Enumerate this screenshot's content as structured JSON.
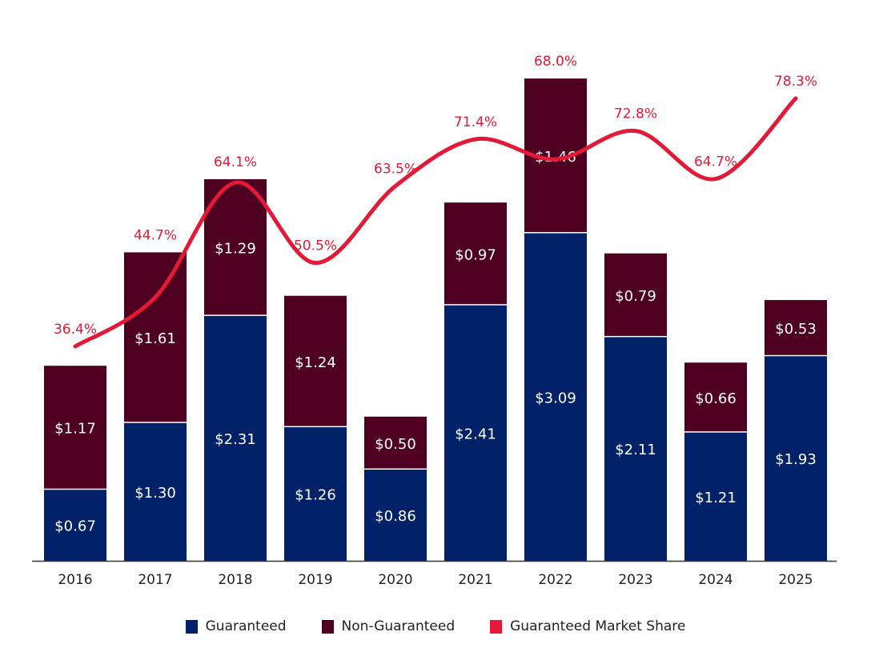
{
  "chart_data": {
    "type": "bar",
    "stacked": true,
    "categories": [
      "2016",
      "2017",
      "2018",
      "2019",
      "2020",
      "2021",
      "2022",
      "2023",
      "2024",
      "2025"
    ],
    "series": [
      {
        "name": "Guaranteed",
        "type": "bar",
        "color": "#012169",
        "values": [
          0.67,
          1.3,
          2.31,
          1.26,
          0.86,
          2.41,
          3.09,
          2.11,
          1.21,
          1.93
        ],
        "labels": [
          "$0.67",
          "$1.30",
          "$2.31",
          "$1.26",
          "$0.86",
          "$2.41",
          "$3.09",
          "$2.11",
          "$1.21",
          "$1.93"
        ]
      },
      {
        "name": "Non-Guaranteed",
        "type": "bar",
        "color": "#4f0020",
        "values": [
          1.17,
          1.61,
          1.29,
          1.24,
          0.5,
          0.97,
          1.46,
          0.79,
          0.66,
          0.53
        ],
        "labels": [
          "$1.17",
          "$1.61",
          "$1.29",
          "$1.24",
          "$0.50",
          "$0.97",
          "$1.46",
          "$0.79",
          "$0.66",
          "$0.53"
        ]
      },
      {
        "name": "Guaranteed Market Share",
        "type": "line",
        "color": "#e31937",
        "values": [
          36.4,
          44.7,
          64.1,
          50.5,
          63.5,
          71.4,
          68.0,
          72.8,
          64.7,
          78.3
        ],
        "labels": [
          "36.4%",
          "44.7%",
          "64.1%",
          "50.5%",
          "63.5%",
          "71.4%",
          "68.0%",
          "72.8%",
          "64.7%",
          "78.3%"
        ]
      }
    ],
    "title": "",
    "xlabel": "",
    "ylabel": "",
    "ylim": [
      0,
      4.6
    ],
    "grid": false,
    "legend": "bottom"
  }
}
